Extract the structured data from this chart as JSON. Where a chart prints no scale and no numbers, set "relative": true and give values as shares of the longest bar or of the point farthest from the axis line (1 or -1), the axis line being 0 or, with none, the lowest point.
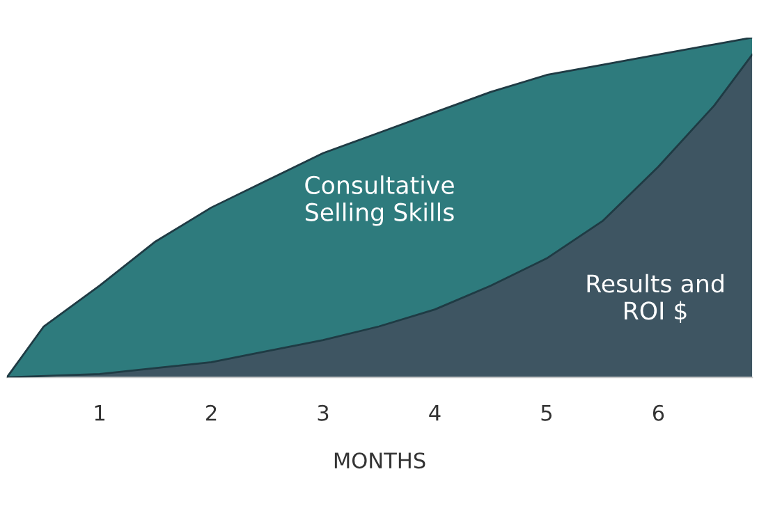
{
  "chart_data": {
    "type": "area",
    "relative": true,
    "xlabel": "MONTHS",
    "xlim": [
      0.17,
      6.84
    ],
    "xticks": [
      1,
      2,
      3,
      4,
      5,
      6
    ],
    "grid": false,
    "legend": false,
    "series": [
      {
        "name": "Consultative\nSelling Skills",
        "color": "#2e7b7d",
        "x": [
          0.17,
          0.5,
          1,
          1.5,
          2,
          2.5,
          3,
          3.5,
          4,
          4.5,
          5,
          5.5,
          6,
          6.5,
          6.84
        ],
        "values": [
          0,
          0.15,
          0.27,
          0.4,
          0.5,
          0.58,
          0.66,
          0.72,
          0.78,
          0.84,
          0.89,
          0.92,
          0.95,
          0.98,
          1.0
        ]
      },
      {
        "name": "Results and\nROI $",
        "color": "#3e5562",
        "x": [
          0.17,
          1,
          2,
          3,
          3.5,
          4,
          4.5,
          5,
          5.5,
          6,
          6.5,
          6.84
        ],
        "values": [
          0,
          0.01,
          0.045,
          0.11,
          0.15,
          0.2,
          0.27,
          0.35,
          0.46,
          0.62,
          0.8,
          0.95
        ]
      }
    ]
  }
}
